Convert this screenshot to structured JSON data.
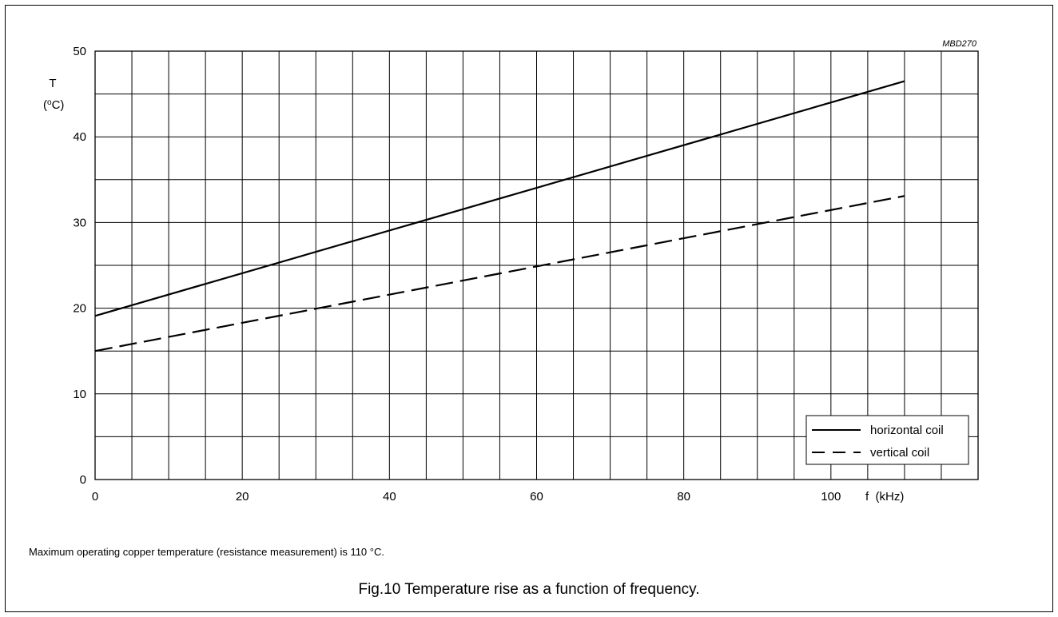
{
  "figure": {
    "code": "MBD270",
    "note": "Maximum operating copper temperature (resistance measurement) is 110 °C.",
    "caption": "Fig.10  Temperature rise as a function of frequency."
  },
  "chart_data": {
    "type": "line",
    "title": "",
    "xlabel": "f  (kHz)",
    "ylabel": "T",
    "ylabel_unit": "(oC)",
    "xlim": [
      0,
      120
    ],
    "ylim": [
      0,
      50
    ],
    "x_ticks": [
      0,
      20,
      40,
      60,
      80,
      100,
      120
    ],
    "x_tick_labels": [
      "0",
      "20",
      "40",
      "60",
      "80",
      "100",
      ""
    ],
    "y_ticks": [
      0,
      10,
      20,
      30,
      40,
      50
    ],
    "x_grid_step": 5,
    "y_grid_step": 5,
    "grid": true,
    "legend_position": "bottom-right",
    "series": [
      {
        "name": "horizontal coil",
        "style": "solid",
        "color": "#000000",
        "x": [
          0,
          110
        ],
        "y": [
          19.1,
          46.5
        ]
      },
      {
        "name": "vertical coil",
        "style": "dashed",
        "color": "#000000",
        "x": [
          0,
          110
        ],
        "y": [
          15.0,
          33.1
        ]
      }
    ]
  }
}
